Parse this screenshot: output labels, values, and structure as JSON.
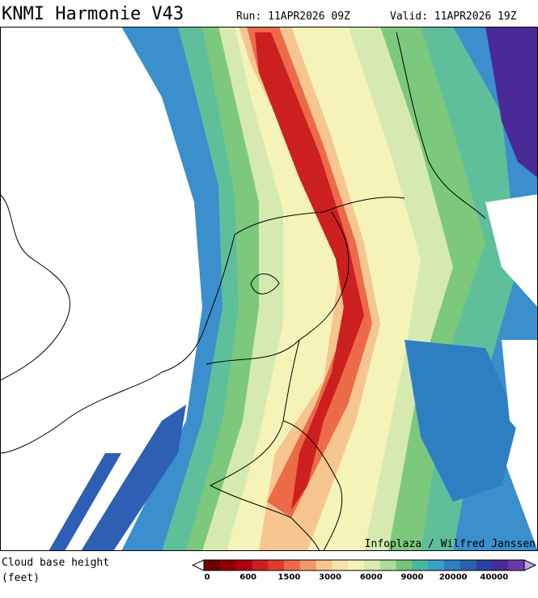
{
  "header": {
    "title": "KNMI Harmonie V43",
    "run": "Run: 11APR2026 09Z",
    "valid": "Valid: 11APR2026 19Z"
  },
  "map": {
    "credit": "Infoplaza / Wilfred Janssen"
  },
  "legend": {
    "title_line1": "Cloud base height",
    "title_line2": "(feet)",
    "labels": [
      0,
      600,
      1500,
      3000,
      6000,
      9000,
      20000,
      40000
    ],
    "colors": [
      "#6b0000",
      "#8b0000",
      "#b00010",
      "#cc1f1f",
      "#e03c2c",
      "#ec6a48",
      "#f39a6a",
      "#f7c690",
      "#f7e3a8",
      "#f5f3b8",
      "#d8ecb0",
      "#a8dc98",
      "#74c47c",
      "#4cb4a0",
      "#3aa0c8",
      "#2d7fc2",
      "#2c5fb0",
      "#2a3f9e",
      "#4a2a96",
      "#6a3aa8"
    ]
  }
}
